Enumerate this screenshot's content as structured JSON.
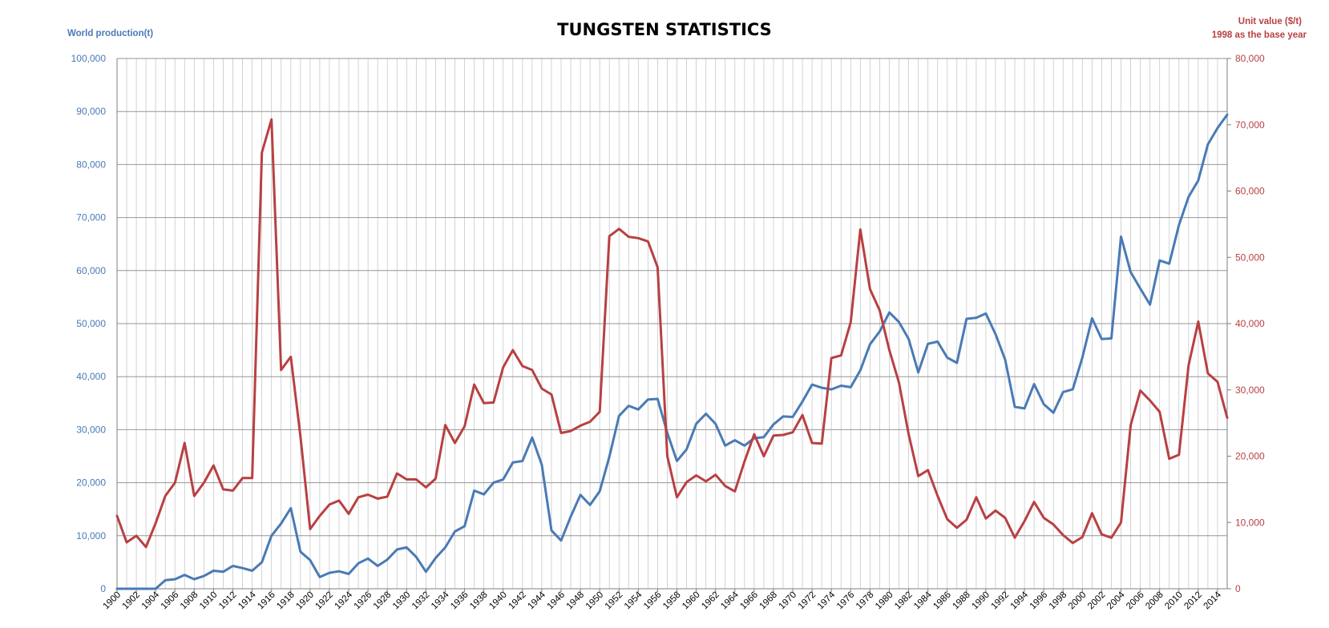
{
  "chart_data": {
    "type": "line",
    "title": "TUNGSTEN STATISTICS",
    "ylabel_left": "World production(t)",
    "ylabel_right_line1": "Unit value ($/t)",
    "ylabel_right_line2": "1998 as the base year",
    "ylim_left": [
      0,
      100000
    ],
    "ylim_right": [
      0,
      80000
    ],
    "yticks_left": [
      "0",
      "10,000",
      "20,000",
      "30,000",
      "40,000",
      "50,000",
      "60,000",
      "70,000",
      "80,000",
      "90,000",
      "100,000"
    ],
    "yticks_right": [
      "0",
      "10,000",
      "20,000",
      "30,000",
      "40,000",
      "50,000",
      "60,000",
      "70,000",
      "80,000"
    ],
    "xlim": [
      1900,
      2015
    ],
    "xticks": [
      "1900",
      "1902",
      "1904",
      "1906",
      "1908",
      "1910",
      "1912",
      "1914",
      "1916",
      "1918",
      "1920",
      "1922",
      "1924",
      "1926",
      "1928",
      "1930",
      "1932",
      "1934",
      "1936",
      "1938",
      "1940",
      "1942",
      "1944",
      "1946",
      "1948",
      "1950",
      "1952",
      "1954",
      "1956",
      "1958",
      "1960",
      "1962",
      "1964",
      "1966",
      "1968",
      "1970",
      "1972",
      "1974",
      "1976",
      "1978",
      "1980",
      "1982",
      "1984",
      "1986",
      "1988",
      "1990",
      "1992",
      "1994",
      "1996",
      "1998",
      "2000",
      "2002",
      "2004",
      "2006",
      "2008",
      "2010",
      "2012",
      "2014"
    ],
    "grid": "horizontal and vertical",
    "colors": {
      "production": "#4a7ab5",
      "unit_value": "#b84042",
      "left_axis_text": "#4a7ab5",
      "right_axis_text": "#b84042",
      "grid": "#c8c8c8",
      "gridline_major": "#969696"
    },
    "series": [
      {
        "axis": "left",
        "x": [
          1900,
          1901,
          1902,
          1903,
          1904,
          1905,
          1906,
          1907,
          1908,
          1909,
          1910,
          1911,
          1912,
          1913,
          1914,
          1915,
          1916,
          1917,
          1918,
          1919,
          1920,
          1921,
          1922,
          1923,
          1924,
          1925,
          1926,
          1927,
          1928,
          1929,
          1930,
          1931,
          1932,
          1933,
          1934,
          1935,
          1936,
          1937,
          1938,
          1939,
          1940,
          1941,
          1942,
          1943,
          1944,
          1945,
          1946,
          1947,
          1948,
          1949,
          1950,
          1951,
          1952,
          1953,
          1954,
          1955,
          1956,
          1957,
          1958,
          1959,
          1960,
          1961,
          1962,
          1963,
          1964,
          1965,
          1966,
          1967,
          1968,
          1969,
          1970,
          1971,
          1972,
          1973,
          1974,
          1975,
          1976,
          1977,
          1978,
          1979,
          1980,
          1981,
          1982,
          1983,
          1984,
          1985,
          1986,
          1987,
          1988,
          1989,
          1990,
          1991,
          1992,
          1993,
          1994,
          1995,
          1996,
          1997,
          1998,
          1999,
          2000,
          2001,
          2002,
          2003,
          2004,
          2005,
          2006,
          2007,
          2008,
          2009,
          2010,
          2011,
          2012,
          2013,
          2014,
          2015
        ],
        "values": [
          0,
          0,
          0,
          0,
          0,
          1600,
          1800,
          2600,
          1800,
          2400,
          3400,
          3200,
          4300,
          3900,
          3400,
          5000,
          10000,
          12300,
          15200,
          7000,
          5400,
          2200,
          3000,
          3300,
          2800,
          4800,
          5700,
          4300,
          5500,
          7400,
          7800,
          6000,
          3200,
          5800,
          7800,
          10800,
          11800,
          18500,
          17800,
          20000,
          20600,
          23800,
          24100,
          28500,
          23400,
          11000,
          9100,
          13600,
          17700,
          15800,
          18400,
          24900,
          32600,
          34500,
          33800,
          35700,
          35800,
          29400,
          24100,
          26300,
          31100,
          33000,
          31100,
          27000,
          28000,
          27000,
          28400,
          28600,
          31000,
          32500,
          32400,
          35300,
          38500,
          37900,
          37600,
          38300,
          38000,
          41200,
          46100,
          48500,
          52100,
          50300,
          47100,
          40800,
          46200,
          46600,
          43600,
          42600,
          50900,
          51100,
          51900,
          48000,
          43200,
          34300,
          34000,
          38600,
          34800,
          33200,
          37100,
          37600,
          43600,
          51000,
          47100,
          47200,
          66400,
          59700,
          56600,
          53600,
          61900,
          61300,
          68600,
          73900,
          77000,
          83800,
          86900,
          89400
        ]
      },
      {
        "axis": "right",
        "x": [
          1900,
          1901,
          1902,
          1903,
          1904,
          1905,
          1906,
          1907,
          1908,
          1909,
          1910,
          1911,
          1912,
          1913,
          1914,
          1915,
          1916,
          1917,
          1918,
          1919,
          1920,
          1921,
          1922,
          1923,
          1924,
          1925,
          1926,
          1927,
          1928,
          1929,
          1930,
          1931,
          1932,
          1933,
          1934,
          1935,
          1936,
          1937,
          1938,
          1939,
          1940,
          1941,
          1942,
          1943,
          1944,
          1945,
          1946,
          1947,
          1948,
          1949,
          1950,
          1951,
          1952,
          1953,
          1954,
          1955,
          1956,
          1957,
          1958,
          1959,
          1960,
          1961,
          1962,
          1963,
          1964,
          1965,
          1966,
          1967,
          1968,
          1969,
          1970,
          1971,
          1972,
          1973,
          1974,
          1975,
          1976,
          1977,
          1978,
          1979,
          1980,
          1981,
          1982,
          1983,
          1984,
          1985,
          1986,
          1987,
          1988,
          1989,
          1990,
          1991,
          1992,
          1993,
          1994,
          1995,
          1996,
          1997,
          1998,
          1999,
          2000,
          2001,
          2002,
          2003,
          2004,
          2005,
          2006,
          2007,
          2008,
          2009,
          2010,
          2011,
          2012,
          2013,
          2014,
          2015
        ],
        "values": [
          11000,
          7000,
          8000,
          6300,
          9900,
          14000,
          16000,
          22000,
          14000,
          16000,
          18600,
          15000,
          14800,
          16700,
          16700,
          65800,
          70800,
          33000,
          35000,
          23000,
          9000,
          11000,
          12700,
          13300,
          11300,
          13800,
          14200,
          13600,
          13900,
          17400,
          16500,
          16500,
          15300,
          16600,
          24700,
          22000,
          24500,
          30800,
          28000,
          28100,
          33400,
          36000,
          33600,
          33000,
          30200,
          29300,
          23500,
          23800,
          24600,
          25200,
          26700,
          53200,
          54300,
          53100,
          52900,
          52400,
          48500,
          20000,
          13800,
          16100,
          17100,
          16200,
          17200,
          15500,
          14700,
          19200,
          23300,
          20000,
          23100,
          23200,
          23600,
          26200,
          22000,
          21900,
          34800,
          35200,
          40200,
          54200,
          45200,
          42000,
          36000,
          31100,
          23300,
          17000,
          17900,
          14000,
          10500,
          9200,
          10400,
          13800,
          10600,
          11800,
          10700,
          7700,
          10200,
          13100,
          10700,
          9700,
          8100,
          6900,
          7800,
          11400,
          8200,
          7700,
          10000,
          24700,
          29900,
          28400,
          26700,
          19600,
          20200,
          33700,
          40300,
          32500,
          31200,
          25800
        ]
      }
    ]
  }
}
